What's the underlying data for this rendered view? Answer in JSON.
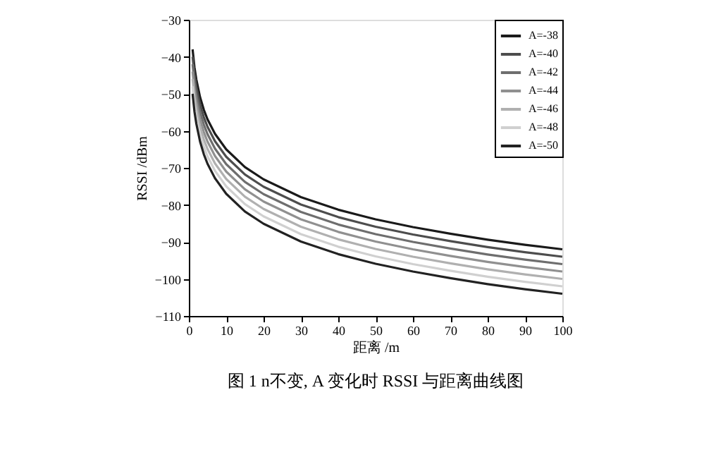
{
  "chart_data": {
    "type": "line",
    "xlabel": "距离 /m",
    "ylabel": "RSSI /dBm",
    "annotations": [
      "图 1    n不变, A 变化时 RSSI 与距离曲线图"
    ],
    "x": [
      1,
      1.5,
      2,
      3,
      4,
      5,
      7,
      10,
      15,
      20,
      30,
      40,
      50,
      60,
      70,
      80,
      90,
      100
    ],
    "xlim": [
      0,
      100
    ],
    "xticks": [
      0,
      10,
      20,
      30,
      40,
      50,
      60,
      70,
      80,
      90,
      100
    ],
    "ylim": [
      -110,
      -30
    ],
    "yticks": [
      -110,
      -100,
      -90,
      -80,
      -70,
      -60,
      -50,
      -40,
      -30
    ],
    "grid": false,
    "legend": "top right",
    "marker": "none",
    "line_style": "solid",
    "series": [
      {
        "name": "A=-38",
        "color": "#1a1a1a",
        "values": [
          -38,
          -42.8,
          -46.1,
          -50.9,
          -54.3,
          -56.9,
          -60.8,
          -65,
          -69.8,
          -73.1,
          -77.9,
          -81.3,
          -83.9,
          -86,
          -87.8,
          -89.4,
          -90.8,
          -92
        ]
      },
      {
        "name": "A=-40",
        "color": "#4d4d4d",
        "values": [
          -40,
          -44.8,
          -48.1,
          -52.9,
          -56.3,
          -58.9,
          -62.8,
          -67,
          -71.8,
          -75.1,
          -79.9,
          -83.3,
          -85.9,
          -88,
          -89.8,
          -91.4,
          -92.8,
          -94
        ]
      },
      {
        "name": "A=-42",
        "color": "#6e6e6e",
        "values": [
          -42,
          -46.8,
          -50.1,
          -54.9,
          -58.3,
          -60.9,
          -64.8,
          -69,
          -73.8,
          -77.1,
          -81.9,
          -85.3,
          -87.9,
          -90,
          -91.8,
          -93.4,
          -94.8,
          -96
        ]
      },
      {
        "name": "A=-44",
        "color": "#909090",
        "values": [
          -44,
          -48.8,
          -52.1,
          -56.9,
          -60.3,
          -62.9,
          -66.8,
          -71,
          -75.8,
          -79.1,
          -83.9,
          -87.3,
          -89.9,
          -92,
          -93.8,
          -95.4,
          -96.8,
          -98
        ]
      },
      {
        "name": "A=-46",
        "color": "#b0b0b0",
        "values": [
          -46,
          -50.8,
          -54.1,
          -58.9,
          -62.3,
          -64.9,
          -68.8,
          -73,
          -77.8,
          -81.1,
          -85.9,
          -89.3,
          -91.9,
          -94,
          -95.8,
          -97.4,
          -98.8,
          -100
        ]
      },
      {
        "name": "A=-48",
        "color": "#d0d0d0",
        "values": [
          -48,
          -52.8,
          -56.1,
          -60.9,
          -64.3,
          -66.9,
          -70.8,
          -75,
          -79.8,
          -83.1,
          -87.9,
          -91.3,
          -93.9,
          -96,
          -97.8,
          -99.4,
          -100.8,
          -102
        ]
      },
      {
        "name": "A=-50",
        "color": "#222222",
        "values": [
          -50,
          -54.8,
          -58.1,
          -62.9,
          -66.3,
          -68.9,
          -72.8,
          -77,
          -81.8,
          -85.1,
          -89.9,
          -93.3,
          -95.9,
          -98,
          -99.8,
          -101.4,
          -102.8,
          -104
        ]
      }
    ]
  }
}
